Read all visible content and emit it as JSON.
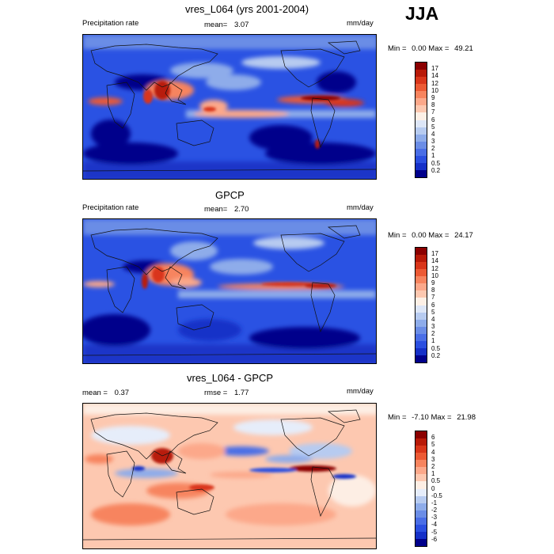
{
  "season": "JJA",
  "panels": [
    {
      "title": "vres_L064 (yrs 2001-2004)",
      "left_label": "Precipitation rate",
      "center_label": "mean=",
      "center_value": "3.07",
      "right_label": "mm/day",
      "min_label": "Min =",
      "min_value": "0.00",
      "max_label": "Max =",
      "max_value": "49.21",
      "colorbar_levels": [
        "17",
        "14",
        "12",
        "10",
        "9",
        "8",
        "7",
        "6",
        "5",
        "4",
        "3",
        "2",
        "1",
        "0.5",
        "0.2"
      ],
      "colorbar_colors": [
        "#8b0000",
        "#b81a08",
        "#d9361a",
        "#ec5a34",
        "#f7845e",
        "#fca88a",
        "#fdc8b0",
        "#fdf0e6",
        "#dde6f7",
        "#b7cbf0",
        "#8eacea",
        "#6b8de6",
        "#4a6ee6",
        "#2b4fe0",
        "#1530c8",
        "#00008b"
      ]
    },
    {
      "title": "GPCP",
      "left_label": "Precipitation rate",
      "center_label": "mean=",
      "center_value": "2.70",
      "right_label": "mm/day",
      "min_label": "Min =",
      "min_value": "0.00",
      "max_label": "Max =",
      "max_value": "24.17",
      "colorbar_levels": [
        "17",
        "14",
        "12",
        "10",
        "9",
        "8",
        "7",
        "6",
        "5",
        "4",
        "3",
        "2",
        "1",
        "0.5",
        "0.2"
      ],
      "colorbar_colors": [
        "#8b0000",
        "#b81a08",
        "#d9361a",
        "#ec5a34",
        "#f7845e",
        "#fca88a",
        "#fdc8b0",
        "#fdf0e6",
        "#dde6f7",
        "#b7cbf0",
        "#8eacea",
        "#6b8de6",
        "#4a6ee6",
        "#2b4fe0",
        "#1530c8",
        "#00008b"
      ]
    },
    {
      "title": "vres_L064 - GPCP",
      "left_label": "mean =",
      "left_value": "0.37",
      "center_label": "rmse =",
      "center_value": "1.77",
      "right_label": "mm/day",
      "min_label": "Min =",
      "min_value": "-7.10",
      "max_label": "Max =",
      "max_value": "21.98",
      "colorbar_levels": [
        "6",
        "5",
        "4",
        "3",
        "2",
        "1",
        "0.5",
        "0",
        "-0.5",
        "-1",
        "-2",
        "-3",
        "-4",
        "-5",
        "-6"
      ],
      "colorbar_colors": [
        "#8b0000",
        "#b81a08",
        "#d9361a",
        "#ec5a34",
        "#f7845e",
        "#fca88a",
        "#fdc8b0",
        "#fdeee4",
        "#e6edfa",
        "#b7cbf0",
        "#8eacea",
        "#6b8de6",
        "#4a6ee6",
        "#2b4fe0",
        "#1530c8",
        "#00008b"
      ]
    }
  ]
}
